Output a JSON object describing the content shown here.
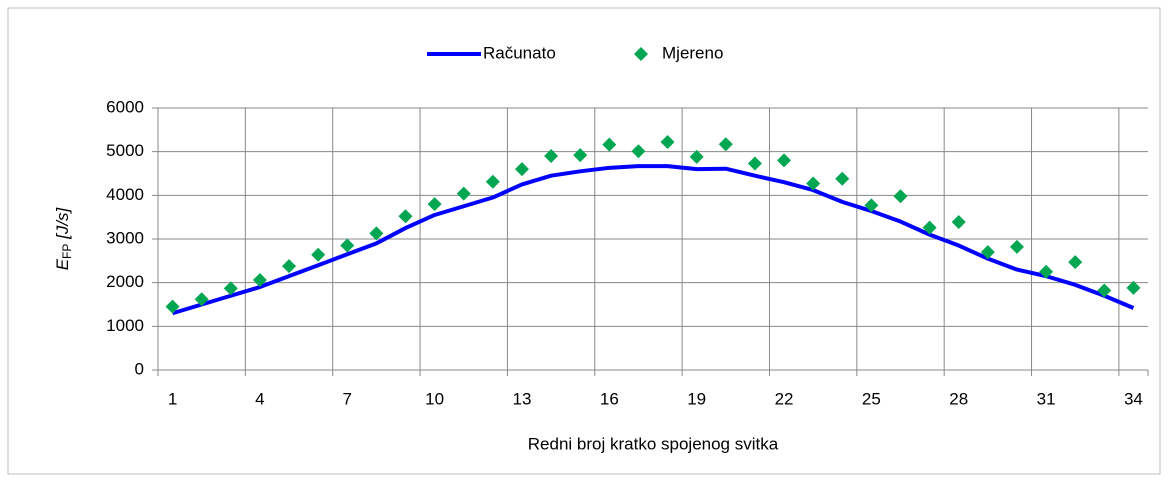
{
  "chart_data": {
    "type": "line",
    "xlabel": "Redni broj kratko spojenog svitka",
    "ylabel": {
      "symbol": "E",
      "subscript": "FP",
      "unit": "[J/s]"
    },
    "categories": [
      "1",
      null,
      null,
      "4",
      null,
      null,
      "7",
      null,
      null,
      "10",
      null,
      null,
      "13",
      null,
      null,
      "16",
      null,
      null,
      "19",
      null,
      null,
      "22",
      null,
      null,
      "25",
      null,
      null,
      "28",
      null,
      null,
      "31",
      null,
      null,
      "34"
    ],
    "series": [
      {
        "name": "Računato",
        "type": "line",
        "color": "#0000ff",
        "values": [
          1300,
          1500,
          1700,
          1900,
          2150,
          2400,
          2650,
          2900,
          3250,
          3550,
          3750,
          3950,
          4250,
          4450,
          4550,
          4630,
          4670,
          4670,
          4600,
          4610,
          4450,
          4300,
          4120,
          3850,
          3640,
          3400,
          3100,
          2850,
          2550,
          2300,
          2150,
          1950,
          1700,
          1420
        ]
      },
      {
        "name": "Mjereno",
        "type": "scatter",
        "color": "#00a651",
        "values": [
          1450,
          1620,
          1870,
          2060,
          2380,
          2640,
          2850,
          3130,
          3520,
          3800,
          4040,
          4310,
          4600,
          4900,
          4920,
          5160,
          5010,
          5220,
          4880,
          5170,
          4730,
          4800,
          4270,
          4380,
          3770,
          3980,
          3260,
          3390,
          2700,
          2820,
          2250,
          2470,
          1820,
          1880
        ]
      }
    ],
    "ylim": [
      0,
      6000
    ],
    "yticks": [
      0,
      1000,
      2000,
      3000,
      4000,
      5000,
      6000
    ],
    "grid": true,
    "legend": "top"
  }
}
